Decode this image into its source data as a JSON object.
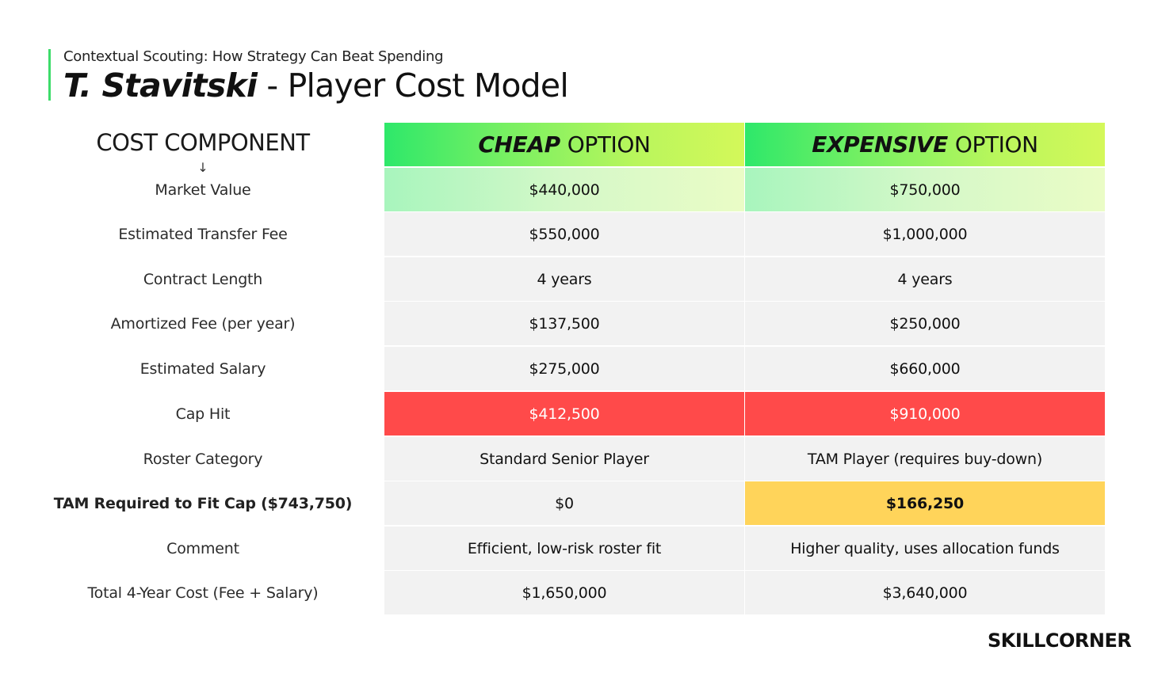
{
  "header": {
    "subtitle": "Contextual Scouting: How Strategy Can Beat Spending",
    "title_name": "T. Stavitski",
    "title_rest": " - Player Cost Model"
  },
  "table": {
    "column_label": "COST COMPONENT",
    "arrow": "↓",
    "cheap_header_em": "CHEAP",
    "cheap_header_rest": "OPTION",
    "expensive_header_em": "EXPENSIVE",
    "expensive_header_rest": "OPTION",
    "rows": [
      {
        "label": "Market Value",
        "cheap": "$440,000",
        "expensive": "$750,000"
      },
      {
        "label": "Estimated Transfer Fee",
        "cheap": "$550,000",
        "expensive": "$1,000,000"
      },
      {
        "label": "Contract Length",
        "cheap": "4 years",
        "expensive": "4 years"
      },
      {
        "label": "Amortized Fee (per year)",
        "cheap": "$137,500",
        "expensive": "$250,000"
      },
      {
        "label": "Estimated Salary",
        "cheap": "$275,000",
        "expensive": "$660,000"
      },
      {
        "label": "Cap Hit",
        "cheap": "$412,500",
        "expensive": "$910,000"
      },
      {
        "label": "Roster Category",
        "cheap": "Standard Senior Player",
        "expensive": "TAM Player (requires buy-down)"
      },
      {
        "label": "TAM Required to Fit Cap ($743,750)",
        "cheap": "$0",
        "expensive": "$166,250"
      },
      {
        "label": "Comment",
        "cheap": "Efficient, low-risk roster fit",
        "expensive": "Higher quality, uses allocation funds"
      },
      {
        "label": "Total 4-Year Cost (Fee + Salary)",
        "cheap": "$1,650,000",
        "expensive": "$3,640,000"
      }
    ]
  },
  "colors": {
    "accent": "#3ddc6a",
    "cap_hit_red": "#ff4a4a",
    "tam_yellow": "#ffd45a",
    "row_gray": "#f2f2f2"
  },
  "brand": {
    "logo": "SKILLCORNER"
  }
}
